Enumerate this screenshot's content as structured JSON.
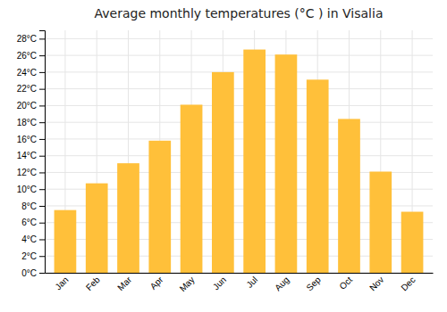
{
  "chart_data": {
    "type": "bar",
    "title": "Average monthly temperatures (°C ) in Visalia",
    "categories": [
      "Jan",
      "Feb",
      "Mar",
      "Apr",
      "May",
      "Jun",
      "Jul",
      "Aug",
      "Sep",
      "Oct",
      "Nov",
      "Dec"
    ],
    "values": [
      7.5,
      10.7,
      13.1,
      15.8,
      20.1,
      24.0,
      26.7,
      26.1,
      23.1,
      18.4,
      12.1,
      7.3
    ],
    "color": "#FFC03A",
    "ylim": [
      0,
      29
    ],
    "yticks": [
      {
        "value": 0,
        "label": "0°C"
      },
      {
        "value": 2,
        "label": "2°C"
      },
      {
        "value": 4,
        "label": "4°C"
      },
      {
        "value": 6,
        "label": "6°C"
      },
      {
        "value": 8,
        "label": "8°C"
      },
      {
        "value": 10,
        "label": "10°C"
      },
      {
        "value": 12,
        "label": "12°C"
      },
      {
        "value": 14,
        "label": "14°C"
      },
      {
        "value": 16,
        "label": "16°C"
      },
      {
        "value": 18,
        "label": "18°C"
      },
      {
        "value": 20,
        "label": "20°C"
      },
      {
        "value": 22,
        "label": "22°C"
      },
      {
        "value": 24,
        "label": "24°C"
      },
      {
        "value": 26,
        "label": "26°C"
      },
      {
        "value": 28,
        "label": "28°C"
      }
    ],
    "grid": true
  }
}
